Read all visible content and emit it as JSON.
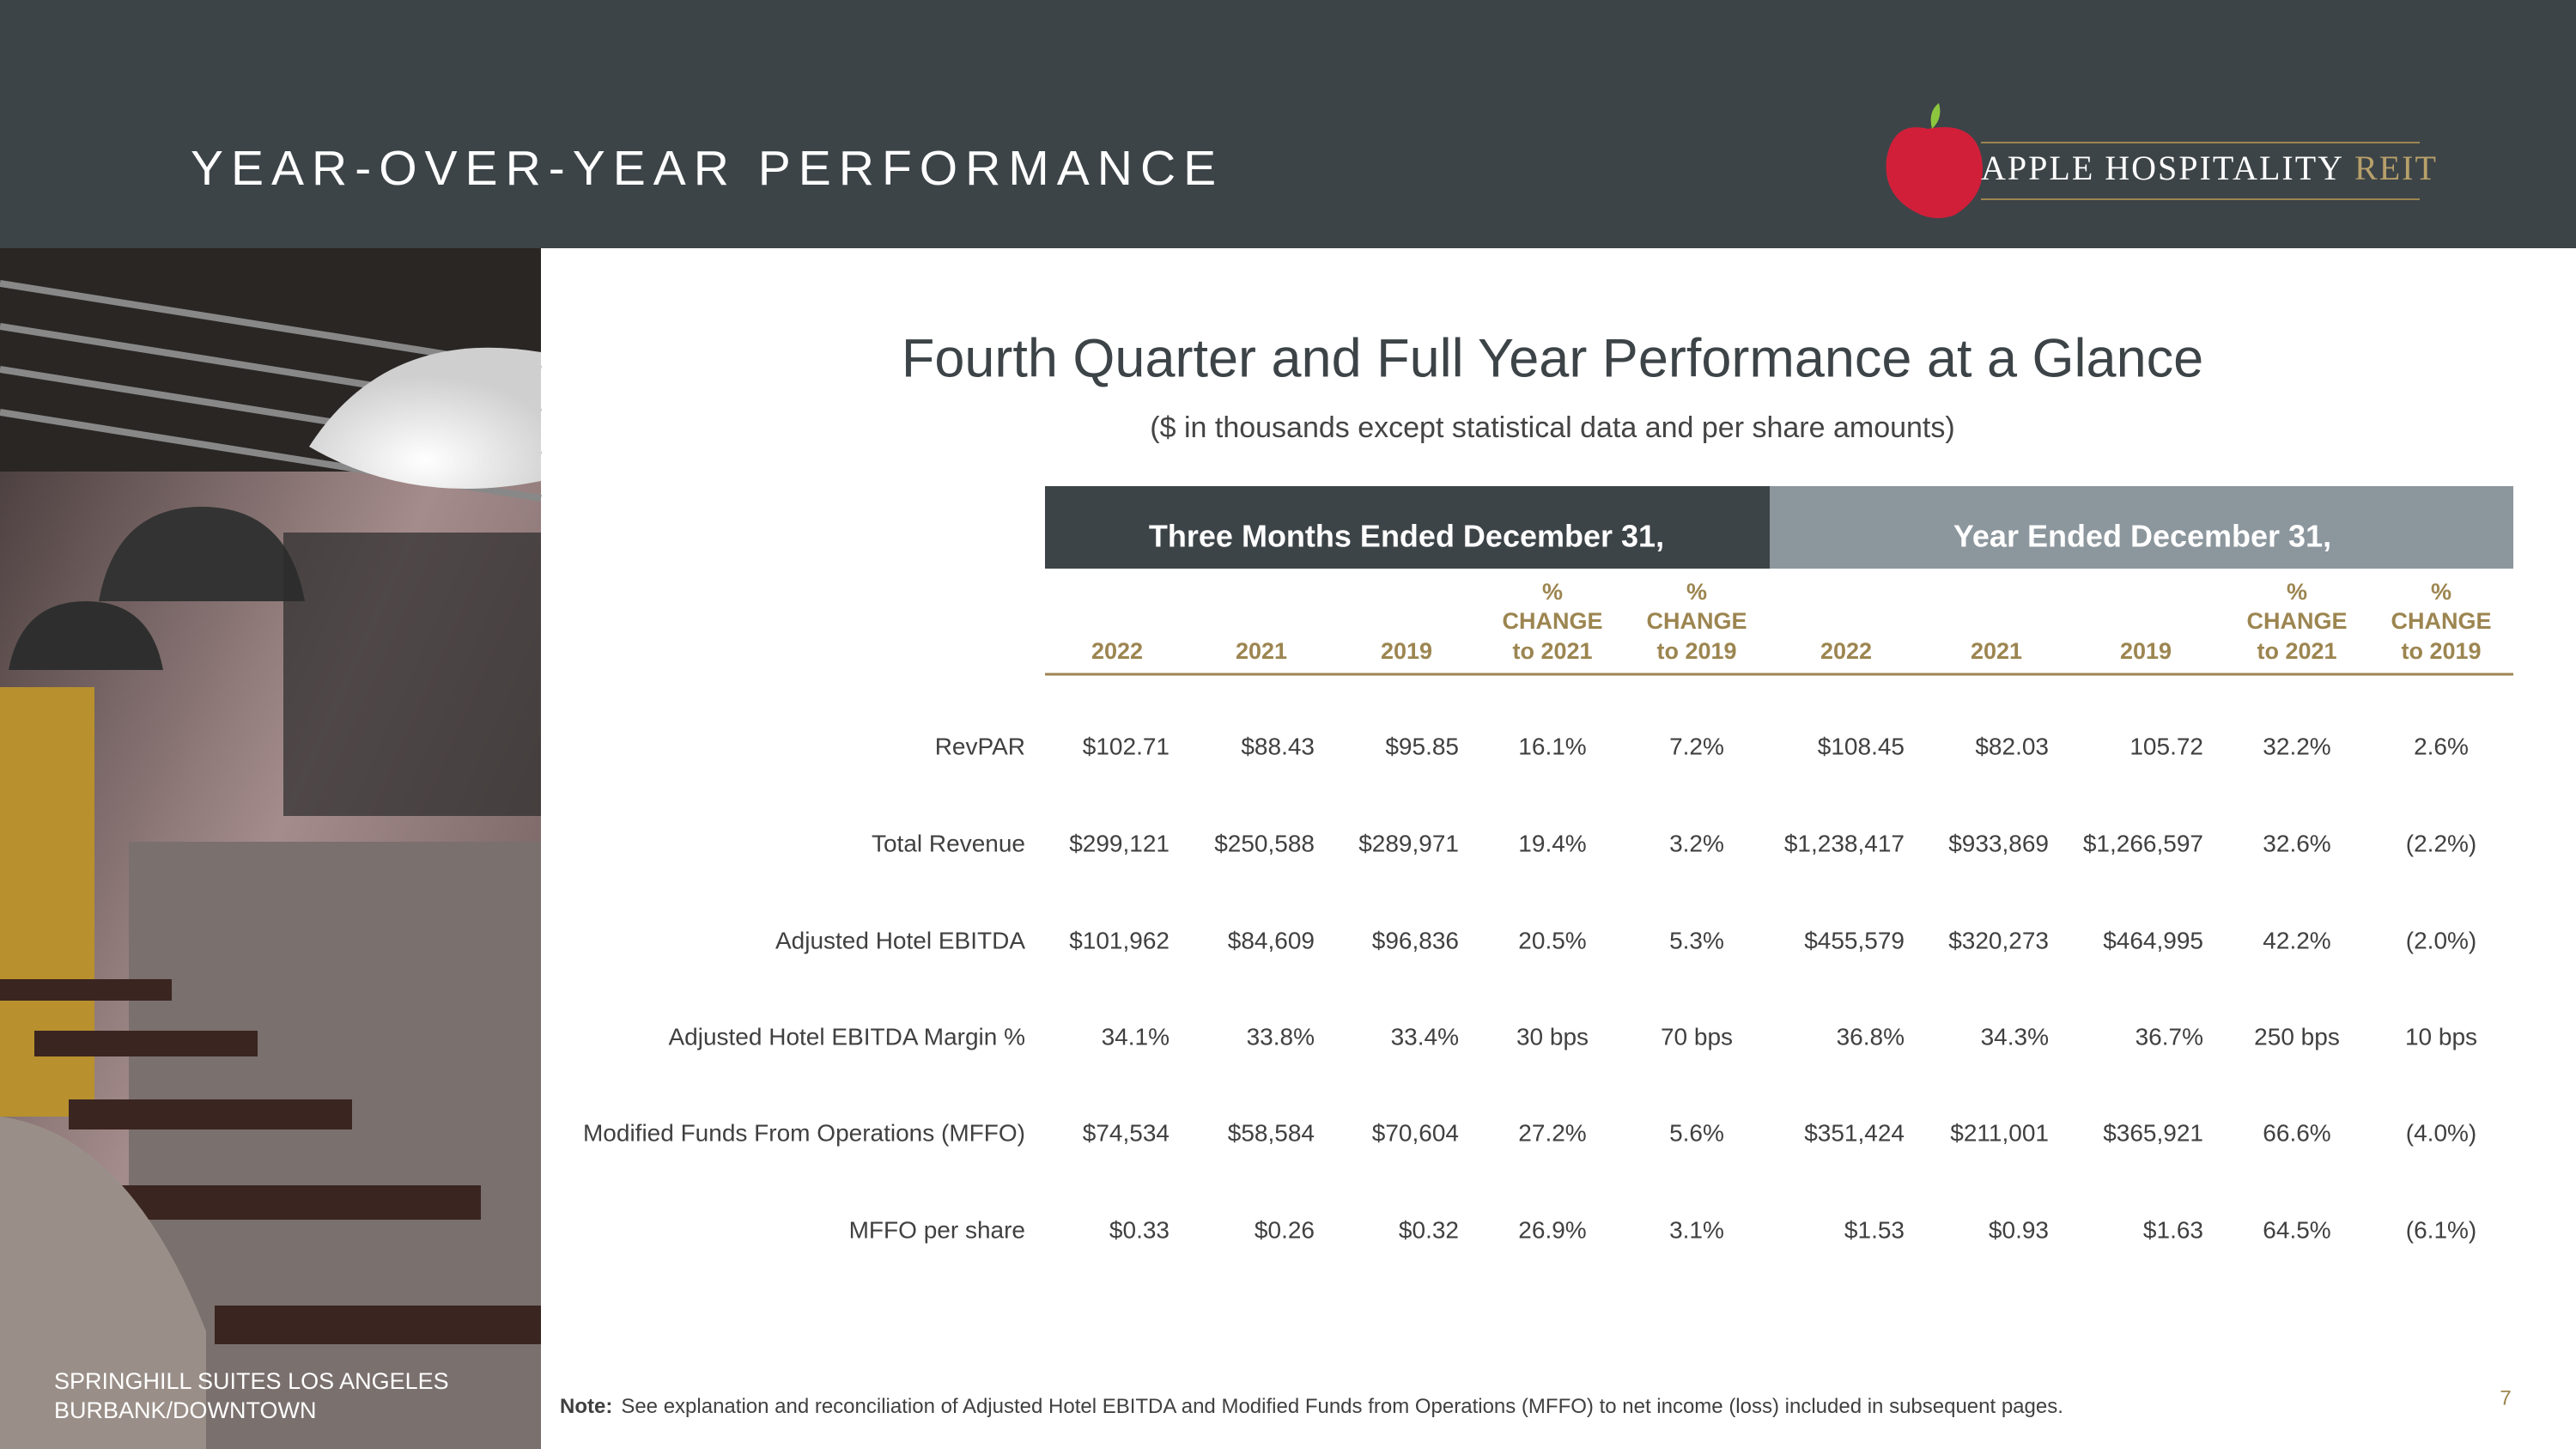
{
  "header": {
    "title": "YEAR-OVER-YEAR PERFORMANCE",
    "logo": {
      "name": "APPLE HOSPITALITY",
      "suffix": "REIT"
    }
  },
  "photo": {
    "caption": [
      "SPRINGHILL SUITES LOS ANGELES",
      "BURBANK/DOWNTOWN"
    ]
  },
  "heading": "Fourth Quarter and Full Year Performance at a Glance",
  "subheading": "($ in thousands except statistical data and per share amounts)",
  "table": {
    "groups": [
      "Three Months Ended December 31,",
      "Year Ended December 31,"
    ],
    "columns": [
      [
        "2022"
      ],
      [
        "2021"
      ],
      [
        "2019"
      ],
      [
        "%",
        "CHANGE",
        "to 2021"
      ],
      [
        "%",
        "CHANGE",
        "to 2019"
      ],
      [
        "2022"
      ],
      [
        "2021"
      ],
      [
        "2019"
      ],
      [
        "%",
        "CHANGE",
        "to 2021"
      ],
      [
        "%",
        "CHANGE",
        "to 2019"
      ]
    ],
    "rows": [
      {
        "label": "RevPAR",
        "cells": [
          "$102.71",
          "$88.43",
          "$95.85",
          "16.1%",
          "7.2%",
          "$108.45",
          "$82.03",
          "105.72",
          "32.2%",
          "2.6%"
        ]
      },
      {
        "label": "Total Revenue",
        "cells": [
          "$299,121",
          "$250,588",
          "$289,971",
          "19.4%",
          "3.2%",
          "$1,238,417",
          "$933,869",
          "$1,266,597",
          "32.6%",
          "(2.2%)"
        ]
      },
      {
        "label": "Adjusted Hotel EBITDA",
        "cells": [
          "$101,962",
          "$84,609",
          "$96,836",
          "20.5%",
          "5.3%",
          "$455,579",
          "$320,273",
          "$464,995",
          "42.2%",
          "(2.0%)"
        ]
      },
      {
        "label": "Adjusted Hotel EBITDA Margin %",
        "cells": [
          "34.1%",
          "33.8%",
          "33.4%",
          "30 bps",
          "70 bps",
          "36.8%",
          "34.3%",
          "36.7%",
          "250 bps",
          "10 bps"
        ]
      },
      {
        "label": "Modified Funds From Operations (MFFO)",
        "cells": [
          "$74,534",
          "$58,584",
          "$70,604",
          "27.2%",
          "5.6%",
          "$351,424",
          "$211,001",
          "$365,921",
          "66.6%",
          "(4.0%)"
        ]
      },
      {
        "label": "MFFO per share",
        "cells": [
          "$0.33",
          "$0.26",
          "$0.32",
          "26.9%",
          "3.1%",
          "$1.53",
          "$0.93",
          "$1.63",
          "64.5%",
          "(6.1%)"
        ]
      }
    ]
  },
  "note": {
    "label": "Note:",
    "text": "See explanation and reconciliation of Adjusted Hotel EBITDA and Modified Funds from Operations (MFFO) to net income (loss) included in subsequent pages."
  },
  "page_number": "7"
}
